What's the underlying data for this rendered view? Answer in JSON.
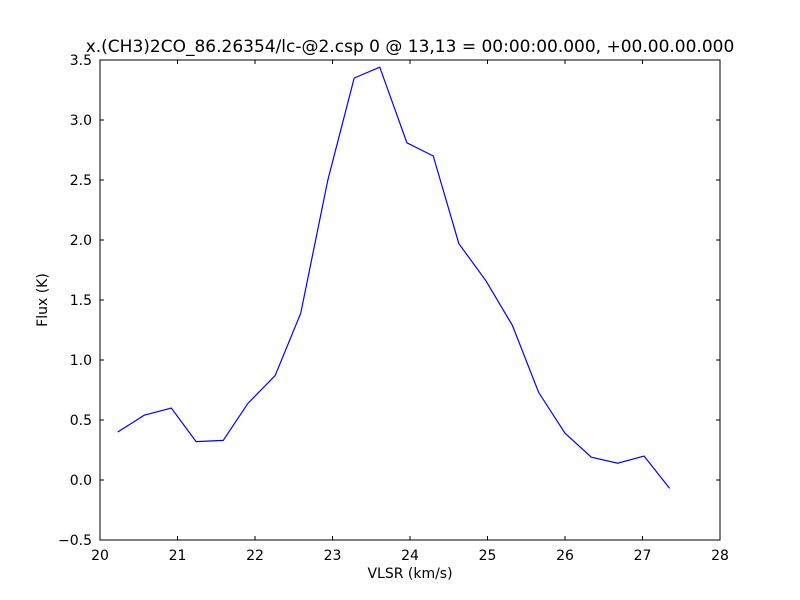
{
  "chart_data": {
    "type": "line",
    "title": "x.(CH3)2CO_86.26354/lc-@2.csp 0 @ 13,13 = 00:00:00.000, +00.00.00.000",
    "x_label": "VLSR (km/s)",
    "y_label": "Flux (K)",
    "x": [
      20.23,
      20.57,
      20.92,
      21.24,
      21.59,
      21.91,
      22.26,
      22.59,
      22.94,
      23.28,
      23.61,
      23.96,
      24.3,
      24.63,
      24.98,
      25.32,
      25.66,
      26.0,
      26.34,
      26.68,
      27.02,
      27.35
    ],
    "series": [
      {
        "color": "#0000ff",
        "values": [
          0.4,
          0.54,
          0.6,
          0.32,
          0.33,
          0.64,
          0.87,
          1.39,
          2.5,
          3.35,
          3.44,
          2.81,
          2.7,
          1.97,
          1.66,
          1.29,
          0.73,
          0.39,
          0.19,
          0.14,
          0.2,
          -0.07
        ]
      }
    ],
    "xlim": [
      20,
      28
    ],
    "ylim": [
      -0.5,
      3.5
    ],
    "xticks": [
      20,
      21,
      22,
      23,
      24,
      25,
      26,
      27,
      28
    ],
    "yticks": [
      {
        "value": -0.5,
        "label": "−0.5"
      },
      {
        "value": 0,
        "label": "0.0"
      },
      {
        "value": 0.5,
        "label": "0.5"
      },
      {
        "value": 1,
        "label": "1.0"
      },
      {
        "value": 1.5,
        "label": "1.5"
      },
      {
        "value": 2,
        "label": "2.0"
      },
      {
        "value": 2.5,
        "label": "2.5"
      },
      {
        "value": 3,
        "label": "3.0"
      },
      {
        "value": 3.5,
        "label": "3.5"
      }
    ],
    "grid": false
  }
}
